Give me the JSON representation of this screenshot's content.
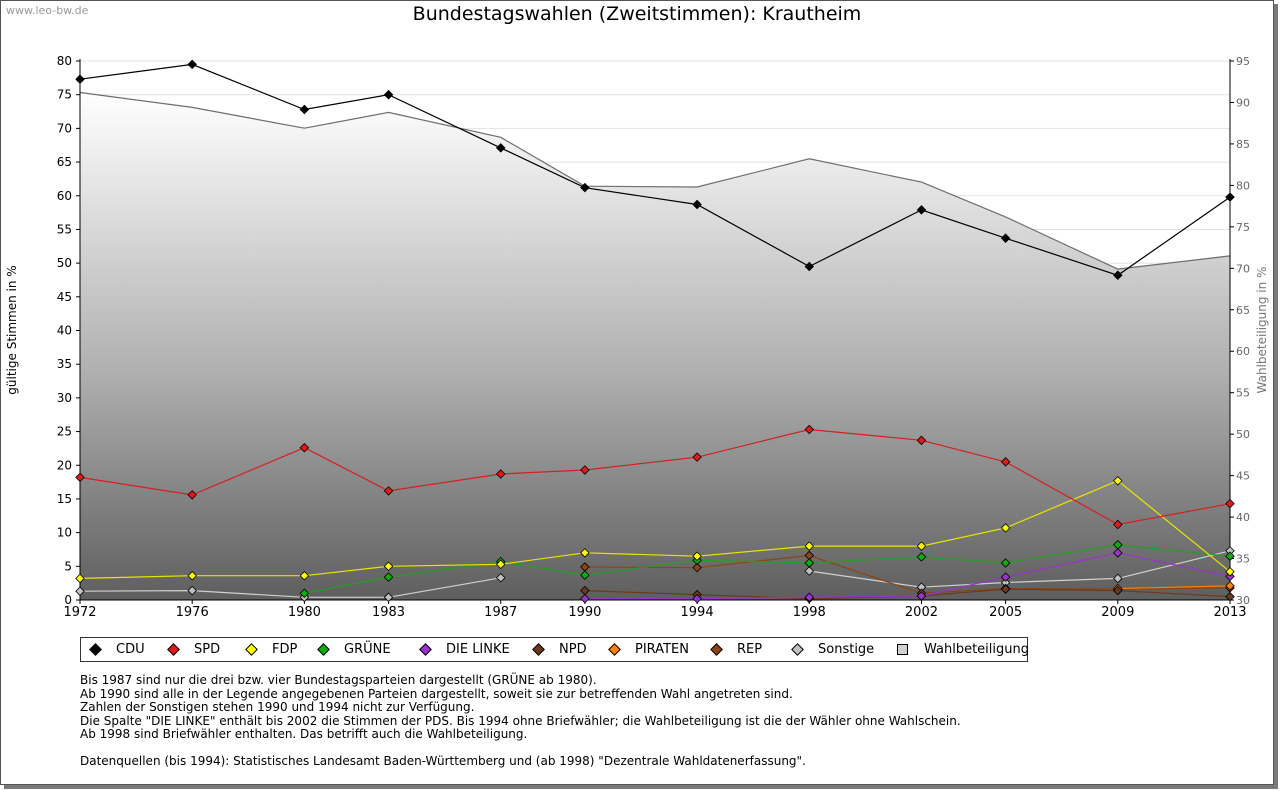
{
  "watermark": "www.leo-bw.de",
  "title": "Bundestagswahlen (Zweitstimmen): Krautheim",
  "ylabel_left": "gültige Stimmen in %",
  "ylabel_right": "Wahlbeteiligung in %",
  "chart_data": {
    "type": "line",
    "title": "Bundestagswahlen (Zweitstimmen): Krautheim",
    "x": [
      "1972",
      "1976",
      "1980",
      "1983",
      "1987",
      "1990",
      "1994",
      "1998",
      "2002",
      "2005",
      "2009",
      "2013"
    ],
    "ylabel": "gültige Stimmen in %",
    "ylim": [
      0,
      80
    ],
    "yticks": [
      0,
      5,
      10,
      15,
      20,
      25,
      30,
      35,
      40,
      45,
      50,
      55,
      60,
      65,
      70,
      75,
      80
    ],
    "y2label": "Wahlbeteiligung in %",
    "y2lim": [
      30,
      95
    ],
    "y2ticks": [
      30,
      35,
      40,
      45,
      50,
      55,
      60,
      65,
      70,
      75,
      80,
      85,
      90,
      95
    ],
    "grid": true,
    "legend_position": "bottom",
    "series": [
      {
        "name": "CDU",
        "color": "#000000",
        "line": "#000000",
        "values": [
          77.3,
          79.5,
          72.8,
          75.0,
          67.1,
          61.2,
          58.7,
          49.5,
          57.9,
          53.7,
          48.2,
          59.8
        ]
      },
      {
        "name": "SPD",
        "color": "#e01a1a",
        "line": "#d42020",
        "values": [
          18.2,
          15.6,
          22.6,
          16.2,
          18.7,
          19.3,
          21.2,
          25.3,
          23.7,
          20.5,
          11.2,
          14.3
        ]
      },
      {
        "name": "FDP",
        "color": "#ffff00",
        "line": "#e6e600",
        "values": [
          3.2,
          3.6,
          3.6,
          5.0,
          5.3,
          7.0,
          6.5,
          8.0,
          8.0,
          10.7,
          17.7,
          4.2
        ]
      },
      {
        "name": "GRÜNE",
        "color": "#11aa11",
        "line": "#22a022",
        "values": [
          null,
          null,
          1.0,
          3.4,
          5.7,
          3.7,
          5.9,
          5.5,
          6.4,
          5.5,
          8.2,
          6.5
        ]
      },
      {
        "name": "DIE LINKE",
        "color": "#9933cc",
        "line": "#9933cc",
        "values": [
          null,
          null,
          null,
          null,
          null,
          0.2,
          0.2,
          0.4,
          0.6,
          3.4,
          7.0,
          3.5
        ]
      },
      {
        "name": "NPD",
        "color": "#6b3a1e",
        "line": "#6b3a1e",
        "values": [
          null,
          null,
          null,
          null,
          null,
          1.4,
          0.8,
          0.2,
          0.6,
          1.6,
          1.4,
          0.5
        ]
      },
      {
        "name": "PIRATEN",
        "color": "#ff7f00",
        "line": "#ff7f00",
        "values": [
          null,
          null,
          null,
          null,
          null,
          null,
          null,
          null,
          null,
          null,
          1.7,
          2.1
        ]
      },
      {
        "name": "REP",
        "color": "#8b4513",
        "line": "#8b4513",
        "values": [
          null,
          null,
          null,
          null,
          null,
          4.9,
          4.8,
          6.6,
          1.0,
          1.7,
          1.6,
          1.8
        ]
      },
      {
        "name": "Sonstige",
        "color": "#c0c0c0",
        "line": "#d0d0d0",
        "values": [
          1.3,
          1.4,
          0.4,
          0.4,
          3.3,
          null,
          null,
          4.3,
          1.9,
          2.6,
          3.2,
          7.3
        ]
      }
    ],
    "turnout": {
      "name": "Wahlbeteiligung",
      "color": "#d0d0d0",
      "line": "#6e6e6e",
      "values": [
        91.2,
        89.4,
        86.9,
        88.8,
        85.8,
        79.9,
        79.8,
        83.2,
        80.4,
        76.2,
        69.9,
        71.5
      ]
    }
  },
  "legend": [
    {
      "label": "CDU",
      "color": "#000000"
    },
    {
      "label": "SPD",
      "color": "#e01a1a"
    },
    {
      "label": "FDP",
      "color": "#ffff00"
    },
    {
      "label": "GRÜNE",
      "color": "#11aa11"
    },
    {
      "label": "DIE LINKE",
      "color": "#9933cc"
    },
    {
      "label": "NPD",
      "color": "#6b3a1e"
    },
    {
      "label": "PIRATEN",
      "color": "#ff7f00"
    },
    {
      "label": "REP",
      "color": "#8b4513"
    },
    {
      "label": "Sonstige",
      "color": "#c0c0c0"
    },
    {
      "label": "Wahlbeteiligung",
      "color": "#d0d0d0"
    }
  ],
  "notes": [
    "Bis 1987 sind nur die drei bzw. vier Bundestagsparteien dargestellt (GRÜNE ab 1980).",
    "Ab 1990 sind alle in der Legende angegebenen Parteien dargestellt, soweit sie zur betreffenden Wahl angetreten sind.",
    "Zahlen der Sonstigen stehen 1990 und 1994 nicht zur Verfügung.",
    "Die Spalte \"DIE LINKE\" enthält bis 2002 die Stimmen der PDS. Bis 1994 ohne Briefwähler; die Wahlbeteiligung ist die der Wähler ohne Wahlschein.",
    "Ab 1998 sind Briefwähler enthalten. Das betrifft auch die Wahlbeteiligung.",
    "",
    "Datenquellen (bis 1994): Statistisches Landesamt Baden-Württemberg und (ab 1998) \"Dezentrale Wahldatenerfassung\"."
  ]
}
